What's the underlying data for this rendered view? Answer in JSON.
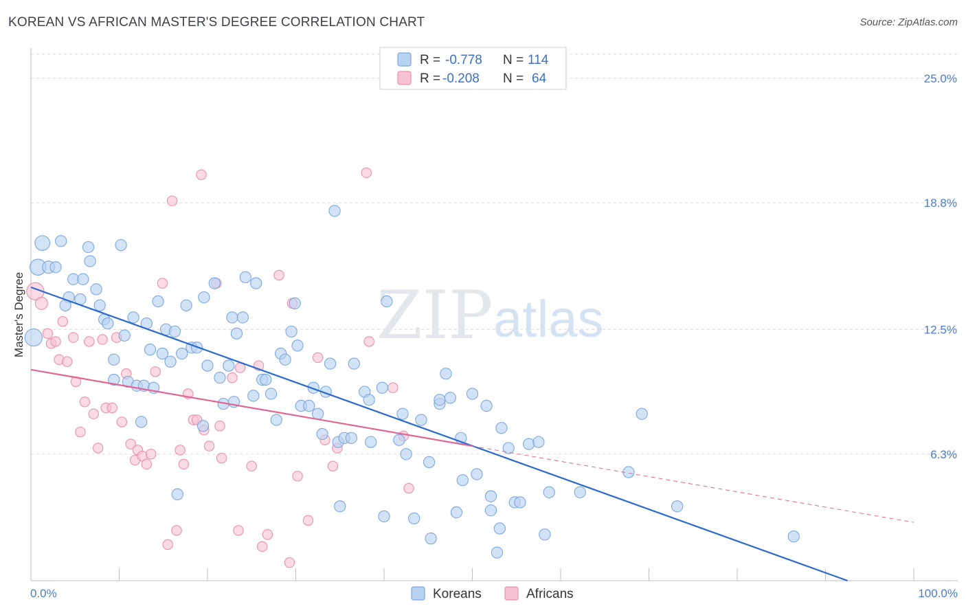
{
  "title": "KOREAN VS AFRICAN MASTER'S DEGREE CORRELATION CHART",
  "source": "Source: ZipAtlas.com",
  "watermark": {
    "zip": "ZIP",
    "atlas": "atlas"
  },
  "legend": {
    "r_label": "R =",
    "n_label": "N =",
    "rows": [
      {
        "series": "Koreans",
        "r": "-0.778",
        "n": "114"
      },
      {
        "series": "Africans",
        "r": "-0.208",
        "n": "64"
      }
    ]
  },
  "colors": {
    "koreans_fill": "#b8d2f2",
    "koreans_stroke": "#7ba7de",
    "koreans_line": "#2a6acb",
    "africans_fill": "#f7c3d3",
    "africans_stroke": "#ea90ad",
    "africans_line": "#e06592",
    "tick_label": "#4a7cc9",
    "grid": "#dcdcdc"
  },
  "chart_data": {
    "type": "scatter",
    "title": "KOREAN VS AFRICAN MASTER'S DEGREE CORRELATION CHART",
    "xlabel": "",
    "ylabel": "Master's Degree",
    "xlim": [
      0,
      100
    ],
    "ylim": [
      0,
      26.5
    ],
    "x_tick_labels": [
      "0.0%",
      "100.0%"
    ],
    "y_ticks": [
      {
        "value": 6.3,
        "label": "6.3%"
      },
      {
        "value": 12.5,
        "label": "12.5%"
      },
      {
        "value": 18.8,
        "label": "18.8%"
      },
      {
        "value": 25.0,
        "label": "25.0%"
      }
    ],
    "grid": "horizontal dashed",
    "legend_position": "top-center",
    "series": [
      {
        "name": "Koreans",
        "r": -0.778,
        "n": 114,
        "trend": {
          "x": [
            0,
            92.5
          ],
          "y": [
            14.6,
            0
          ]
        },
        "points": [
          [
            0.3,
            12.1,
            1.4
          ],
          [
            1.3,
            16.8,
            1.2
          ],
          [
            0.8,
            15.6,
            1.3
          ],
          [
            2.0,
            15.6,
            1.0
          ],
          [
            2.8,
            15.6,
            0.9
          ],
          [
            3.4,
            16.9,
            0.9
          ],
          [
            4.3,
            14.1,
            0.9
          ],
          [
            3.9,
            13.7,
            0.9
          ],
          [
            4.8,
            15.0,
            0.9
          ],
          [
            5.6,
            14.0,
            0.9
          ],
          [
            5.9,
            15.0,
            0.9
          ],
          [
            6.5,
            16.6,
            0.9
          ],
          [
            6.7,
            15.9,
            0.9
          ],
          [
            7.4,
            14.5,
            0.9
          ],
          [
            7.8,
            13.7,
            0.9
          ],
          [
            8.3,
            13.0,
            0.9
          ],
          [
            8.7,
            12.8,
            0.9
          ],
          [
            9.4,
            11.0,
            0.9
          ],
          [
            9.4,
            10.0,
            0.9
          ],
          [
            10.2,
            16.7,
            0.9
          ],
          [
            10.6,
            12.2,
            0.9
          ],
          [
            11.0,
            9.9,
            0.9
          ],
          [
            11.6,
            13.1,
            0.9
          ],
          [
            12.0,
            9.7,
            0.9
          ],
          [
            12.5,
            7.9,
            0.9
          ],
          [
            12.8,
            9.7,
            0.9
          ],
          [
            13.1,
            12.8,
            0.9
          ],
          [
            13.5,
            11.5,
            0.9
          ],
          [
            13.9,
            9.6,
            0.9
          ],
          [
            14.4,
            13.9,
            0.9
          ],
          [
            14.9,
            11.3,
            0.9
          ],
          [
            15.3,
            12.5,
            0.9
          ],
          [
            15.8,
            10.9,
            0.9
          ],
          [
            16.3,
            12.4,
            0.9
          ],
          [
            16.6,
            4.3,
            0.9
          ],
          [
            17.1,
            11.3,
            0.9
          ],
          [
            17.6,
            13.7,
            0.9
          ],
          [
            18.2,
            11.6,
            0.9
          ],
          [
            18.8,
            11.6,
            0.9
          ],
          [
            19.5,
            7.7,
            0.9
          ],
          [
            19.6,
            14.1,
            0.9
          ],
          [
            20.0,
            10.7,
            0.9
          ],
          [
            20.8,
            14.8,
            0.9
          ],
          [
            21.4,
            10.1,
            0.9
          ],
          [
            21.8,
            8.8,
            0.9
          ],
          [
            22.4,
            10.7,
            0.9
          ],
          [
            22.8,
            13.1,
            0.9
          ],
          [
            23.0,
            8.9,
            0.9
          ],
          [
            23.3,
            12.3,
            0.9
          ],
          [
            24.0,
            13.1,
            0.9
          ],
          [
            24.3,
            15.1,
            0.9
          ],
          [
            25.2,
            9.2,
            0.9
          ],
          [
            25.5,
            14.8,
            0.9
          ],
          [
            26.2,
            10.0,
            0.9
          ],
          [
            26.6,
            10.0,
            0.9
          ],
          [
            27.2,
            9.3,
            0.9
          ],
          [
            27.8,
            8.0,
            0.9
          ],
          [
            28.3,
            11.3,
            0.9
          ],
          [
            28.8,
            11.0,
            0.9
          ],
          [
            29.5,
            12.4,
            0.9
          ],
          [
            29.9,
            13.8,
            0.9
          ],
          [
            30.2,
            11.7,
            0.9
          ],
          [
            30.6,
            8.7,
            0.9
          ],
          [
            31.5,
            8.7,
            0.9
          ],
          [
            32.0,
            9.6,
            0.9
          ],
          [
            32.5,
            8.3,
            0.9
          ],
          [
            33.0,
            7.3,
            0.9
          ],
          [
            33.4,
            9.4,
            0.9
          ],
          [
            33.9,
            10.8,
            0.9
          ],
          [
            34.4,
            18.4,
            0.9
          ],
          [
            34.8,
            6.9,
            0.9
          ],
          [
            35.0,
            3.7,
            0.9
          ],
          [
            35.5,
            7.1,
            0.9
          ],
          [
            36.3,
            7.1,
            0.9
          ],
          [
            36.6,
            10.8,
            0.9
          ],
          [
            37.8,
            9.4,
            0.9
          ],
          [
            38.5,
            6.9,
            0.9
          ],
          [
            38.3,
            9.0,
            0.9
          ],
          [
            39.8,
            9.6,
            0.9
          ],
          [
            40.0,
            3.2,
            0.9
          ],
          [
            40.3,
            13.9,
            0.9
          ],
          [
            41.7,
            7.0,
            0.9
          ],
          [
            42.1,
            8.3,
            0.9
          ],
          [
            42.5,
            6.3,
            0.9
          ],
          [
            43.4,
            3.1,
            0.9
          ],
          [
            44.2,
            8.0,
            0.9
          ],
          [
            45.1,
            5.9,
            0.9
          ],
          [
            45.3,
            2.1,
            0.9
          ],
          [
            46.3,
            8.8,
            0.9
          ],
          [
            46.3,
            9.0,
            0.9
          ],
          [
            47.0,
            10.3,
            0.9
          ],
          [
            47.5,
            9.1,
            0.9
          ],
          [
            48.2,
            3.4,
            0.9
          ],
          [
            48.7,
            7.1,
            0.9
          ],
          [
            48.9,
            5.0,
            0.9
          ],
          [
            50.0,
            9.3,
            0.9
          ],
          [
            50.5,
            5.3,
            0.9
          ],
          [
            51.6,
            8.7,
            0.9
          ],
          [
            52.1,
            4.2,
            0.9
          ],
          [
            52.1,
            3.5,
            0.9
          ],
          [
            52.8,
            1.4,
            0.9
          ],
          [
            53.1,
            2.6,
            0.9
          ],
          [
            53.3,
            7.6,
            0.9
          ],
          [
            54.1,
            6.6,
            0.9
          ],
          [
            54.8,
            3.9,
            0.9
          ],
          [
            55.4,
            3.9,
            0.9
          ],
          [
            56.4,
            6.8,
            0.9
          ],
          [
            57.5,
            6.9,
            0.9
          ],
          [
            58.2,
            2.3,
            0.9
          ],
          [
            58.7,
            4.4,
            0.9
          ],
          [
            62.2,
            4.4,
            0.9
          ],
          [
            67.7,
            5.4,
            0.9
          ],
          [
            69.2,
            8.3,
            0.9
          ],
          [
            73.2,
            3.7,
            0.9
          ],
          [
            86.4,
            2.2,
            0.9
          ]
        ]
      },
      {
        "name": "Africans",
        "r": -0.208,
        "n": 64,
        "trend": {
          "x": [
            0,
            50.0,
            100
          ],
          "y": [
            10.5,
            6.7,
            2.9
          ]
        },
        "points": [
          [
            0.5,
            14.4,
            1.4
          ],
          [
            1.2,
            13.8,
            1.0
          ],
          [
            1.9,
            12.3,
            0.8
          ],
          [
            2.3,
            11.8,
            0.8
          ],
          [
            2.8,
            11.9,
            0.8
          ],
          [
            3.2,
            11.0,
            0.8
          ],
          [
            3.6,
            12.9,
            0.8
          ],
          [
            4.1,
            10.9,
            0.8
          ],
          [
            4.8,
            12.1,
            0.8
          ],
          [
            5.1,
            9.9,
            0.8
          ],
          [
            5.6,
            7.4,
            0.8
          ],
          [
            6.1,
            8.9,
            0.8
          ],
          [
            6.6,
            11.9,
            0.8
          ],
          [
            7.1,
            8.3,
            0.8
          ],
          [
            7.6,
            6.6,
            0.8
          ],
          [
            8.1,
            12.0,
            0.8
          ],
          [
            8.5,
            8.6,
            0.8
          ],
          [
            9.2,
            8.6,
            0.8
          ],
          [
            9.7,
            12.1,
            0.8
          ],
          [
            10.3,
            7.9,
            0.8
          ],
          [
            10.8,
            10.3,
            0.8
          ],
          [
            11.3,
            6.8,
            0.8
          ],
          [
            11.8,
            6.0,
            0.8
          ],
          [
            12.1,
            6.5,
            0.8
          ],
          [
            12.6,
            6.2,
            0.8
          ],
          [
            13.1,
            5.8,
            0.8
          ],
          [
            13.6,
            6.3,
            0.8
          ],
          [
            14.1,
            10.4,
            0.8
          ],
          [
            14.9,
            14.8,
            0.8
          ],
          [
            15.5,
            1.8,
            0.8
          ],
          [
            16.0,
            18.9,
            0.8
          ],
          [
            16.5,
            2.5,
            0.8
          ],
          [
            16.9,
            6.5,
            0.8
          ],
          [
            17.3,
            5.8,
            0.8
          ],
          [
            17.8,
            9.3,
            0.8
          ],
          [
            18.4,
            8.0,
            0.8
          ],
          [
            18.8,
            8.0,
            0.8
          ],
          [
            19.3,
            20.2,
            0.8
          ],
          [
            19.6,
            7.5,
            0.8
          ],
          [
            20.2,
            6.7,
            0.8
          ],
          [
            21.0,
            14.8,
            0.8
          ],
          [
            21.4,
            7.7,
            0.8
          ],
          [
            21.6,
            6.1,
            0.8
          ],
          [
            22.8,
            10.1,
            0.8
          ],
          [
            23.5,
            2.5,
            0.8
          ],
          [
            23.7,
            10.6,
            0.8
          ],
          [
            25.0,
            5.7,
            0.8
          ],
          [
            25.8,
            10.7,
            0.8
          ],
          [
            26.2,
            1.7,
            0.8
          ],
          [
            26.8,
            2.3,
            0.8
          ],
          [
            28.1,
            15.2,
            0.8
          ],
          [
            29.3,
            0.9,
            0.8
          ],
          [
            29.6,
            13.8,
            0.8
          ],
          [
            30.2,
            5.2,
            0.8
          ],
          [
            31.4,
            3.0,
            0.8
          ],
          [
            32.5,
            11.1,
            0.8
          ],
          [
            33.3,
            7.0,
            0.8
          ],
          [
            34.2,
            5.7,
            0.8
          ],
          [
            34.7,
            6.6,
            0.8
          ],
          [
            38.0,
            20.3,
            0.8
          ],
          [
            38.3,
            11.9,
            0.8
          ],
          [
            41.0,
            9.6,
            0.8
          ],
          [
            42.8,
            4.6,
            0.8
          ],
          [
            42.2,
            7.2,
            0.8
          ]
        ]
      }
    ]
  }
}
